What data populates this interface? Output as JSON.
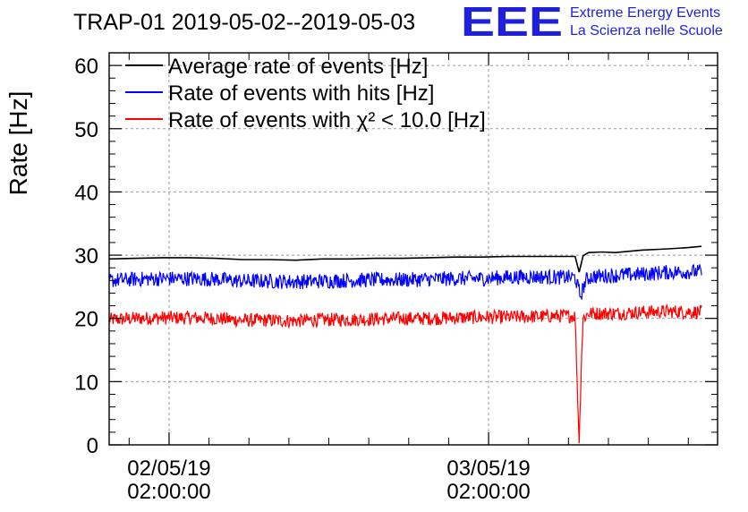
{
  "chart_data": {
    "type": "line",
    "title": "TRAP-01 2019-05-02--2019-05-03",
    "ylabel": "Rate [Hz]",
    "xlabel": "",
    "ylim": [
      0,
      62
    ],
    "yticks": [
      0,
      10,
      20,
      30,
      40,
      50,
      60
    ],
    "x_unit": "hours since 2019-05-01 21:30",
    "xlim": [
      0,
      45.7
    ],
    "xticks": [
      {
        "x": 4.5,
        "line1": "02/05/19",
        "line2": "02:00:00"
      },
      {
        "x": 28.5,
        "line1": "03/05/19",
        "line2": "02:00:00"
      }
    ],
    "grid": true,
    "legend_position": "top-left",
    "logo": {
      "mark": "EEE",
      "line1": "Extreme Energy Events",
      "line2": "La Scienza nelle Scuole",
      "color": "#1f1fe0"
    },
    "series": [
      {
        "name": "Average rate of events [Hz]",
        "color": "#000000",
        "style": "smooth",
        "x": [
          0.0,
          2.0,
          4.0,
          6.0,
          8.0,
          10.0,
          12.0,
          14.0,
          16.0,
          18.0,
          20.0,
          22.0,
          24.0,
          26.0,
          28.0,
          30.0,
          32.0,
          34.0,
          35.0,
          35.3,
          35.6,
          36.0,
          37.0,
          38.0,
          40.0,
          42.0,
          43.5,
          44.5
        ],
        "y": [
          29.4,
          29.5,
          29.6,
          29.6,
          29.5,
          29.3,
          29.3,
          29.2,
          29.4,
          29.4,
          29.5,
          29.5,
          29.6,
          29.7,
          29.7,
          29.8,
          29.8,
          29.8,
          29.8,
          27.3,
          29.9,
          30.4,
          30.5,
          30.4,
          30.8,
          31.0,
          31.2,
          31.4
        ]
      },
      {
        "name": "Rate of events with hits [Hz]",
        "color": "#0000ff",
        "style": "noisy",
        "noise": 1.2,
        "x": [
          0.0,
          2.0,
          4.0,
          6.0,
          8.0,
          10.0,
          12.0,
          14.0,
          16.0,
          18.0,
          20.0,
          22.0,
          24.0,
          26.0,
          28.0,
          30.0,
          32.0,
          34.0,
          35.0,
          35.4,
          35.8,
          36.2,
          38.0,
          40.0,
          42.0,
          44.5
        ],
        "y": [
          26.0,
          26.2,
          26.3,
          26.3,
          26.2,
          25.9,
          25.9,
          25.8,
          25.9,
          26.0,
          26.1,
          26.1,
          26.2,
          26.3,
          26.3,
          26.5,
          26.6,
          26.5,
          26.5,
          23.5,
          26.0,
          26.6,
          26.8,
          27.0,
          27.3,
          27.4
        ]
      },
      {
        "name": "Rate of events with χ² < 10.0 [Hz]",
        "color": "#ff0000",
        "style": "noisy",
        "noise": 1.1,
        "x": [
          0.0,
          2.0,
          4.0,
          6.0,
          8.0,
          10.0,
          12.0,
          14.0,
          16.0,
          18.0,
          20.0,
          22.0,
          24.0,
          26.0,
          28.0,
          30.0,
          32.0,
          34.0,
          35.0,
          35.3,
          35.45,
          35.6,
          36.0,
          38.0,
          40.0,
          42.0,
          44.5
        ],
        "y": [
          19.8,
          20.0,
          20.1,
          20.1,
          20.0,
          19.7,
          19.7,
          19.6,
          19.8,
          19.8,
          19.9,
          20.0,
          20.0,
          20.1,
          20.2,
          20.2,
          20.3,
          20.4,
          20.4,
          0.0,
          12.0,
          20.0,
          20.8,
          20.8,
          21.0,
          21.1,
          21.0
        ]
      }
    ]
  }
}
